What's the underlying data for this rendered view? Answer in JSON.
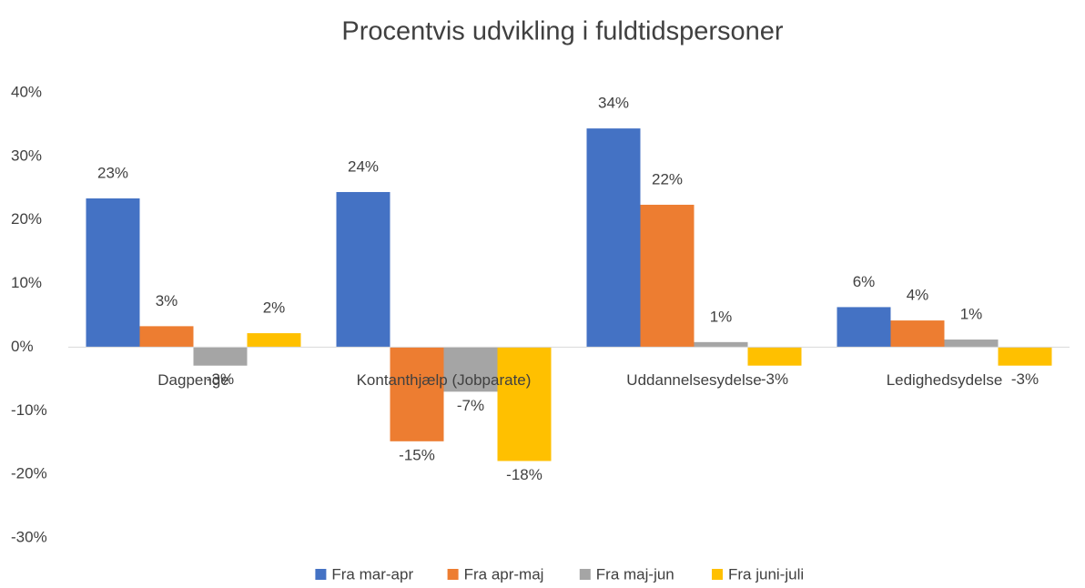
{
  "chart_data": {
    "type": "bar",
    "title": "Procentvis udvikling i fuldtidspersoner",
    "categories": [
      "Dagpenge",
      "Kontanthjælp (Jobparate)",
      "Uddannelsesydelse",
      "Ledighedsydelse"
    ],
    "series": [
      {
        "name": "Fra mar-apr",
        "color": "#4472c4",
        "values": [
          23.4,
          24.4,
          34.4,
          6.3
        ],
        "value_labels": [
          "23%",
          "24%",
          "34%",
          "6%"
        ]
      },
      {
        "name": "Fra apr-maj",
        "color": "#ed7d31",
        "values": [
          3.3,
          -14.8,
          22.4,
          4.2
        ],
        "value_labels": [
          "3%",
          "-15%",
          "22%",
          "4%"
        ]
      },
      {
        "name": "Fra maj-jun",
        "color": "#a5a5a5",
        "values": [
          -2.9,
          -7.0,
          0.8,
          1.2
        ],
        "value_labels": [
          "-3%",
          "-7%",
          "1%",
          "1%"
        ]
      },
      {
        "name": "Fra juni-juli",
        "color": "#ffc000",
        "values": [
          2.2,
          -17.9,
          -2.9,
          -2.9
        ],
        "value_labels": [
          "2%",
          "-18%",
          "-3%",
          "-3%"
        ]
      }
    ],
    "ylim": [
      -30,
      40
    ],
    "yticks": [
      {
        "value": -30,
        "label": "-30%"
      },
      {
        "value": -20,
        "label": "-20%"
      },
      {
        "value": -10,
        "label": "-10%"
      },
      {
        "value": 0,
        "label": "0%"
      },
      {
        "value": 10,
        "label": "10%"
      },
      {
        "value": 20,
        "label": "20%"
      },
      {
        "value": 30,
        "label": "30%"
      },
      {
        "value": 40,
        "label": "40%"
      }
    ],
    "grid": false
  }
}
